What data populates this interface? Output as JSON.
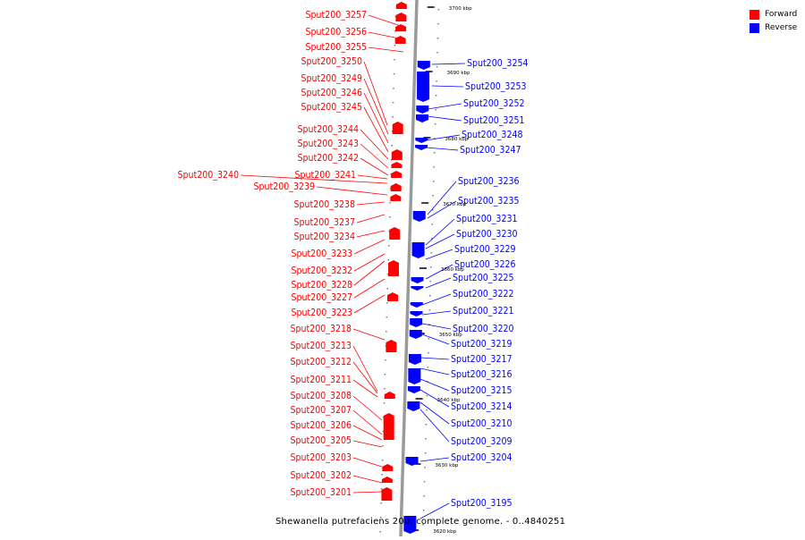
{
  "legend": [
    {
      "label": "Forward",
      "color": "#ff0000"
    },
    {
      "label": "Reverse",
      "color": "#0000ff"
    }
  ],
  "caption": "Shewanella putrefaciens 200, complete genome. - 0..4840251",
  "colors": {
    "forward": "#ff0000",
    "reverse": "#0000ff",
    "axis": "#9a9a9a"
  },
  "scale_labels": [
    "3700 kbp",
    "3690 kbp",
    "3680 kbp",
    "3670 kbp",
    "3660 kbp",
    "3650 kbp",
    "3640 kbp",
    "3630 kbp",
    "3620 kbp"
  ],
  "forward_genes": [
    "Sput200_3257",
    "Sput200_3256",
    "Sput200_3255",
    "Sput200_3250",
    "Sput200_3249",
    "Sput200_3246",
    "Sput200_3245",
    "Sput200_3244",
    "Sput200_3243",
    "Sput200_3242",
    "Sput200_3241",
    "Sput200_3240",
    "Sput200_3239",
    "Sput200_3238",
    "Sput200_3237",
    "Sput200_3234",
    "Sput200_3233",
    "Sput200_3232",
    "Sput200_3228",
    "Sput200_3227",
    "Sput200_3223",
    "Sput200_3218",
    "Sput200_3213",
    "Sput200_3212",
    "Sput200_3211",
    "Sput200_3208",
    "Sput200_3207",
    "Sput200_3206",
    "Sput200_3205",
    "Sput200_3203",
    "Sput200_3202",
    "Sput200_3201"
  ],
  "reverse_genes": [
    "Sput200_3254",
    "Sput200_3253",
    "Sput200_3252",
    "Sput200_3251",
    "Sput200_3248",
    "Sput200_3247",
    "Sput200_3236",
    "Sput200_3235",
    "Sput200_3231",
    "Sput200_3230",
    "Sput200_3229",
    "Sput200_3226",
    "Sput200_3225",
    "Sput200_3222",
    "Sput200_3221",
    "Sput200_3220",
    "Sput200_3219",
    "Sput200_3217",
    "Sput200_3216",
    "Sput200_3215",
    "Sput200_3214",
    "Sput200_3210",
    "Sput200_3209",
    "Sput200_3204",
    "Sput200_3195"
  ]
}
